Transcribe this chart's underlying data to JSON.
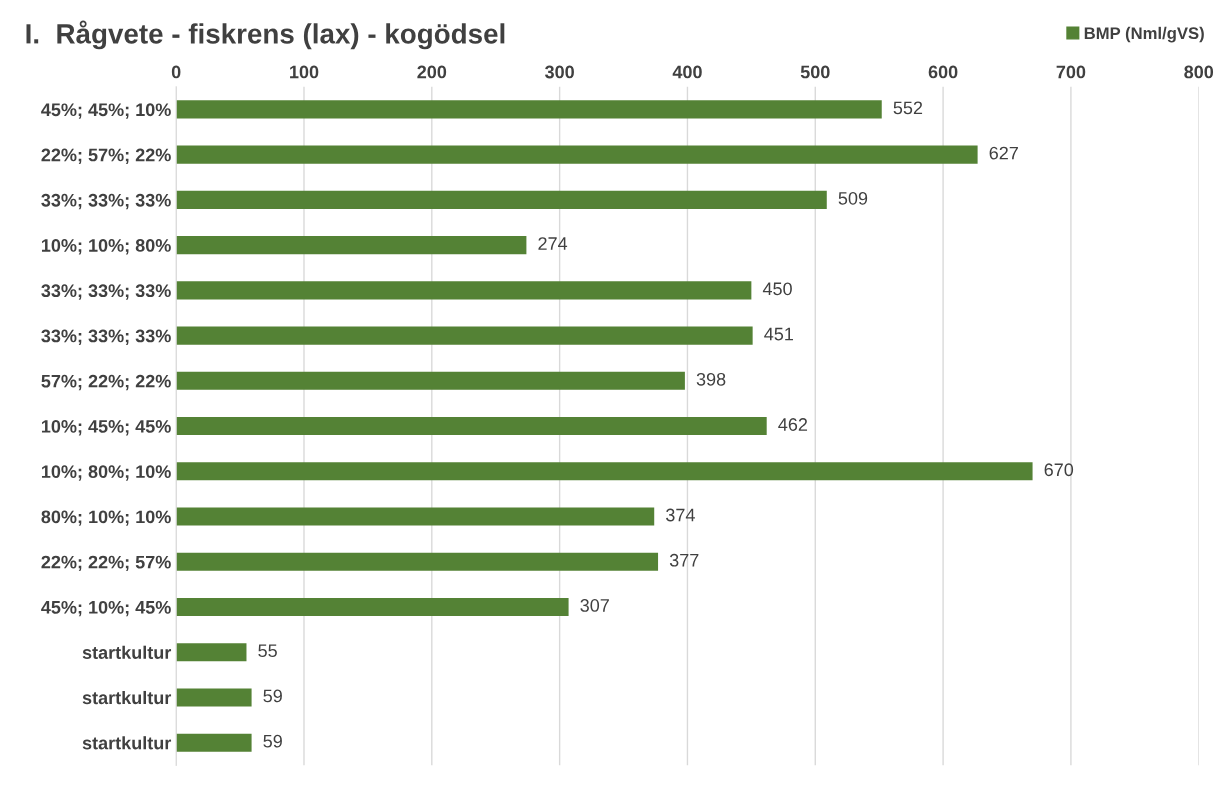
{
  "chart_data": {
    "type": "bar",
    "orientation": "horizontal",
    "title": "I.  Rågvete - fiskrens (lax) - kogödsel",
    "categories": [
      "45%; 45%; 10%",
      "22%; 57%; 22%",
      "33%; 33%; 33%",
      "10%; 10%; 80%",
      "33%; 33%; 33%",
      "33%; 33%; 33%",
      "57%; 22%; 22%",
      "10%; 45%; 45%",
      "10%; 80%; 10%",
      "80%; 10%; 10%",
      "22%; 22%; 57%",
      "45%; 10%; 45%",
      "startkultur",
      "startkultur",
      "startkultur"
    ],
    "series": [
      {
        "name": "BMP (Nml/gVS)",
        "color": "#548235",
        "values": [
          552,
          627,
          509,
          274,
          450,
          451,
          398,
          462,
          670,
          374,
          377,
          307,
          55,
          59,
          59
        ]
      }
    ],
    "xlim": [
      0,
      800
    ],
    "xticks": [
      0,
      100,
      200,
      300,
      400,
      500,
      600,
      700,
      800
    ],
    "grid": "x",
    "legend": "top right",
    "data_labels": true
  }
}
